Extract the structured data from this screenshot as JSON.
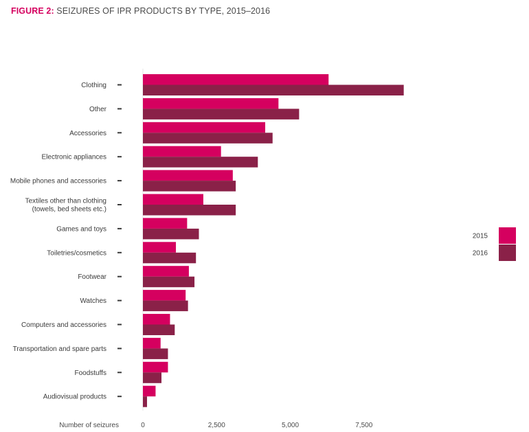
{
  "title": {
    "figure": "FIGURE 2:",
    "text": "SEIZURES OF IPR PRODUCTS BY TYPE, 2015–2016"
  },
  "colors": {
    "2015": "#d5005f",
    "2016": "#8a2148",
    "accent": "#d5005f"
  },
  "chart_data": {
    "type": "bar",
    "orientation": "horizontal",
    "categories": [
      [
        "Clothing"
      ],
      [
        "Other"
      ],
      [
        "Accessories"
      ],
      [
        "Electronic appliances"
      ],
      [
        "Mobile phones and accessories"
      ],
      [
        "Textiles other than clothing",
        "(towels, bed sheets etc.)"
      ],
      [
        "Games and toys"
      ],
      [
        "Toiletries/cosmetics"
      ],
      [
        "Footwear"
      ],
      [
        "Watches"
      ],
      [
        "Computers and accessories"
      ],
      [
        "Transportation and spare parts"
      ],
      [
        "Foodstuffs"
      ],
      [
        "Audiovisual products"
      ]
    ],
    "series": [
      {
        "name": "2015",
        "values": [
          6300,
          4600,
          4150,
          2650,
          3050,
          2050,
          1500,
          1120,
          1560,
          1450,
          920,
          600,
          850,
          430
        ]
      },
      {
        "name": "2016",
        "values": [
          8850,
          5300,
          4400,
          3900,
          3150,
          3150,
          1900,
          1800,
          1750,
          1530,
          1080,
          850,
          630,
          140
        ]
      }
    ],
    "xlabel": "Number of seizures",
    "xlim": [
      0,
      10000
    ],
    "xticks": [
      0,
      2500,
      5000,
      7500
    ],
    "xtick_labels": [
      "0",
      "2,500",
      "5,000",
      "7,500"
    ],
    "legend": {
      "position": "right",
      "entries": [
        "2015",
        "2016"
      ]
    },
    "grid": false
  }
}
